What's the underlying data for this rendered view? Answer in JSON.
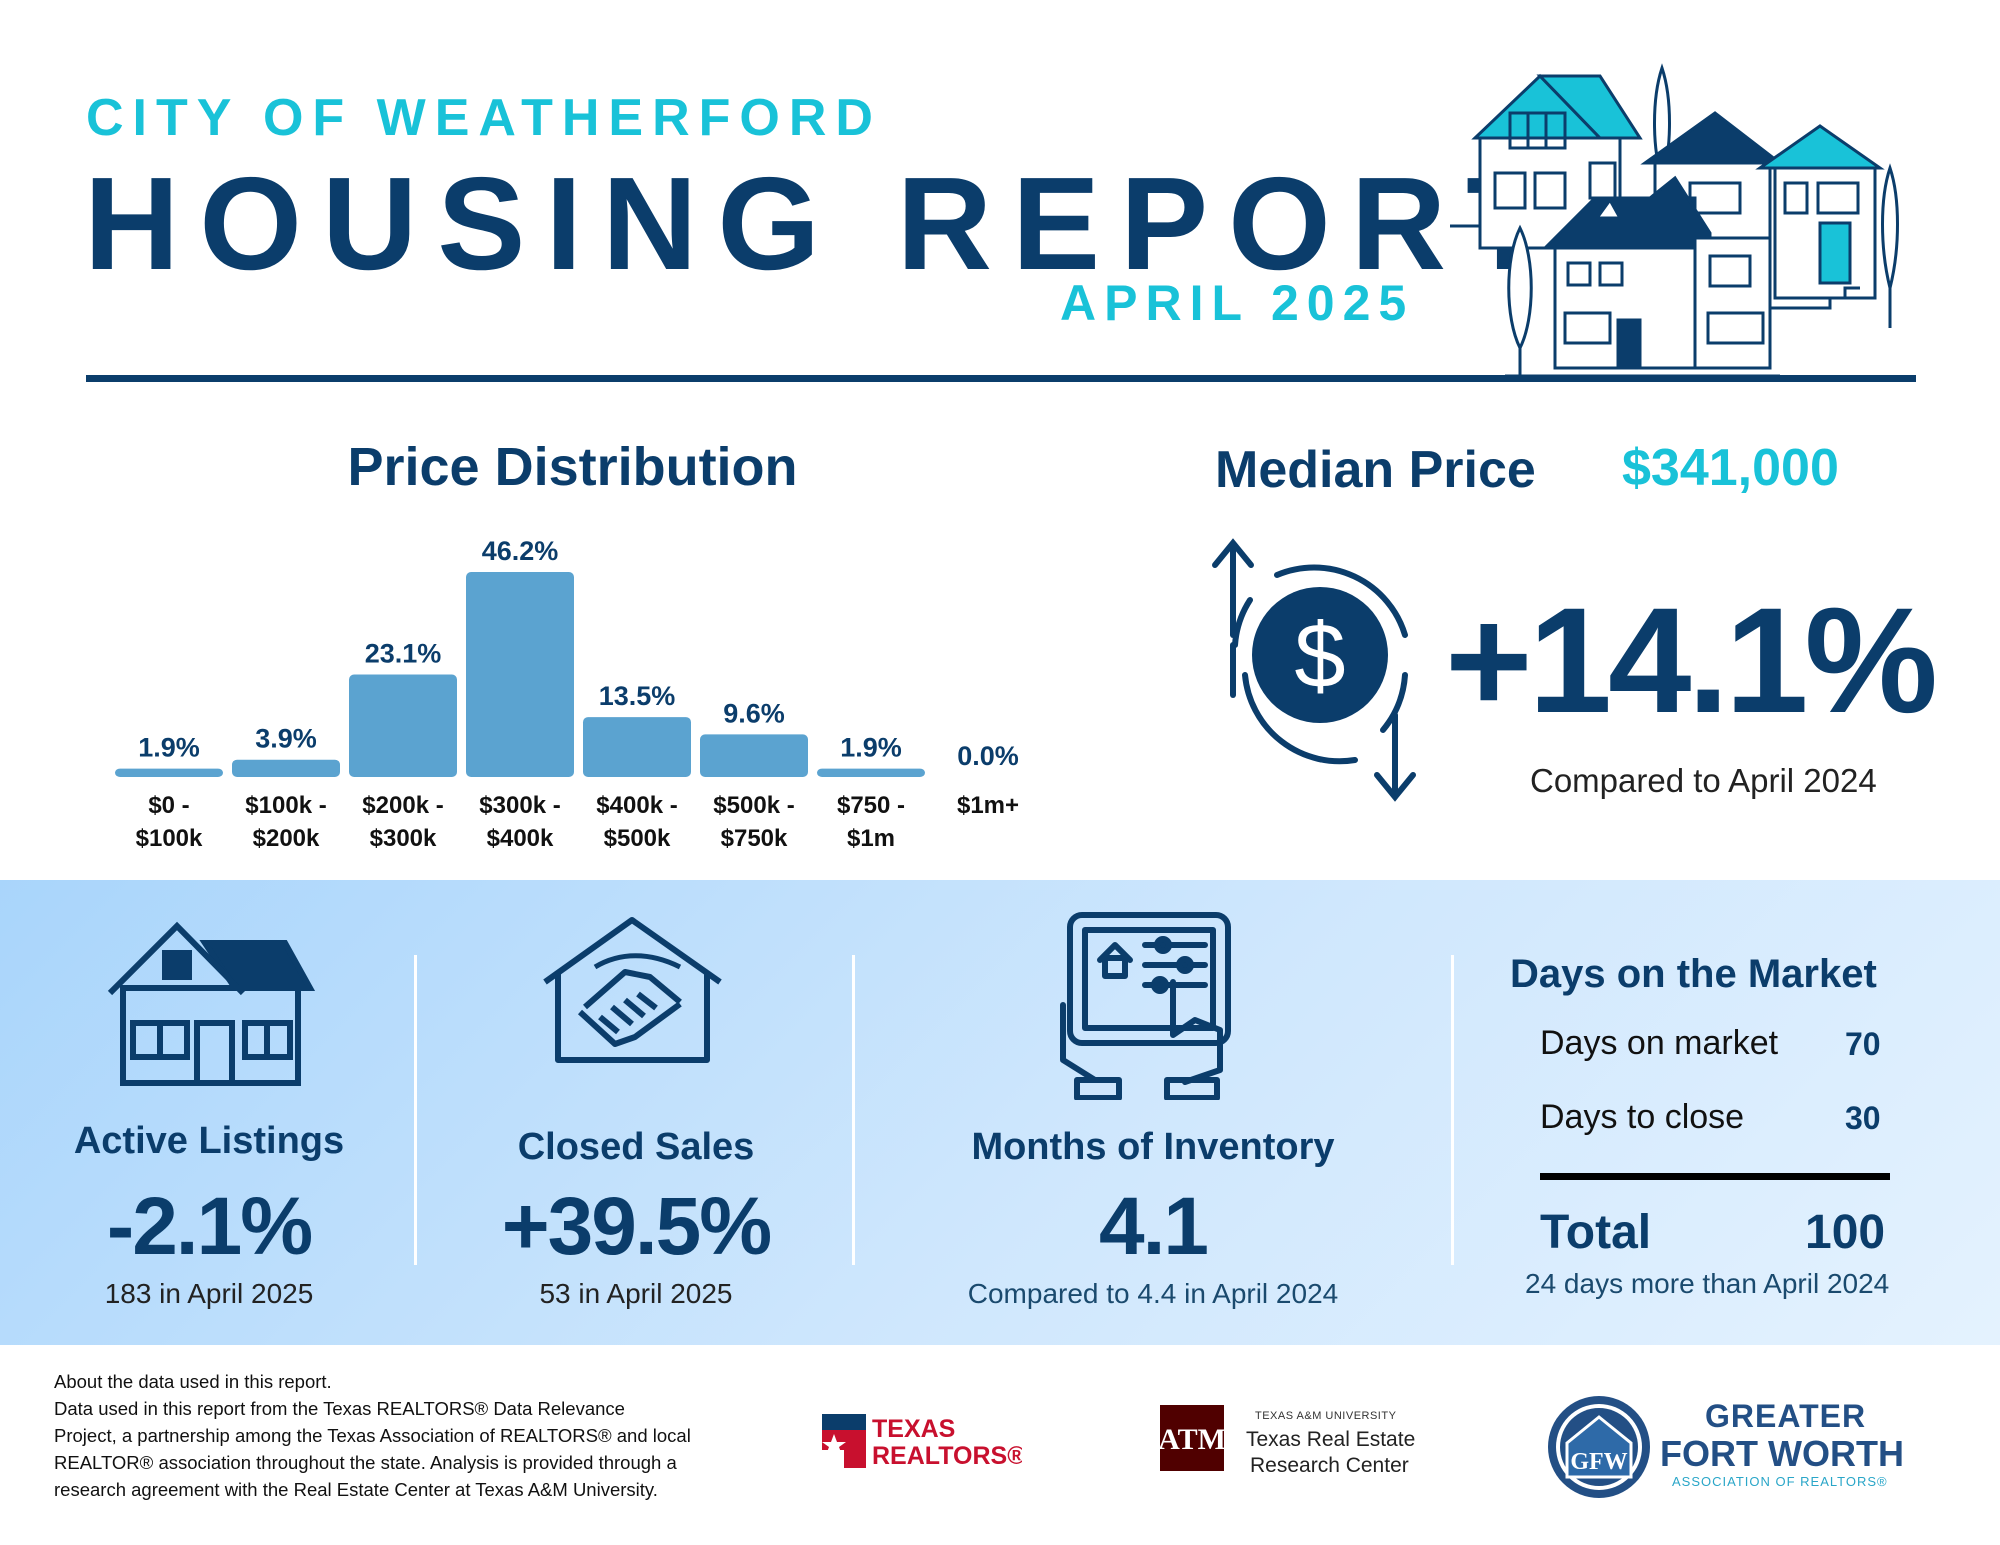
{
  "header": {
    "city": "CITY OF WEATHERFORD",
    "title": "HOUSING REPORT",
    "month": "APRIL 2025"
  },
  "price_distribution": {
    "title": "Price Distribution"
  },
  "chart_data": {
    "type": "bar",
    "title": "Price Distribution",
    "categories": [
      [
        "$0 -",
        "$100k"
      ],
      [
        "$100k -",
        "$200k"
      ],
      [
        "$200k -",
        "$300k"
      ],
      [
        "$300k -",
        "$400k"
      ],
      [
        "$400k -",
        "$500k"
      ],
      [
        "$500k -",
        "$750k"
      ],
      [
        "$750 -",
        "$1m"
      ],
      [
        "$1m+"
      ]
    ],
    "values": [
      1.9,
      3.9,
      23.1,
      46.2,
      13.5,
      9.6,
      1.9,
      0.0
    ],
    "labels": [
      "1.9%",
      "3.9%",
      "23.1%",
      "46.2%",
      "13.5%",
      "9.6%",
      "1.9%",
      "0.0%"
    ],
    "ylim": [
      0,
      46.2
    ],
    "grid": false,
    "legend": "none",
    "bar_color": "#5ba3d0"
  },
  "median": {
    "label": "Median Price",
    "value": "$341,000",
    "change": "+14.1%",
    "note": "Compared to April 2024"
  },
  "stats": {
    "active": {
      "title": "Active Listings",
      "value": "-2.1%",
      "sub": "183 in April 2025"
    },
    "closed": {
      "title": "Closed Sales",
      "value": "+39.5%",
      "sub": "53 in April 2025"
    },
    "inventory": {
      "title": "Months of Inventory",
      "value": "4.1",
      "sub": "Compared to 4.4 in April 2024"
    }
  },
  "dom": {
    "title": "Days on the Market",
    "rows": [
      {
        "label": "Days on market",
        "value": "70"
      },
      {
        "label": "Days to close",
        "value": "30"
      }
    ],
    "total_label": "Total",
    "total_value": "100",
    "note": "24 days more than April 2024"
  },
  "footer": {
    "lines": [
      "About the data used in this report.",
      "Data used in this report from the Texas REALTORS® Data Relevance",
      "Project, a partnership among the Texas Association of REALTORS® and local",
      "REALTOR® association throughout the state. Analysis is provided through a",
      "research agreement with the Real Estate Center at Texas A&M University."
    ],
    "logos": {
      "texas_realtors": [
        "TEXAS",
        "REALTORS®"
      ],
      "tamu_top": "TEXAS A&M UNIVERSITY",
      "tamu_l1": "Texas Real Estate",
      "tamu_l2": "Research Center",
      "gfw_l1": "GREATER",
      "gfw_l2": "FORT WORTH",
      "gfw_l3": "ASSOCIATION OF REALTORS®"
    }
  },
  "colors": {
    "navy": "#0b3d6b",
    "cyan": "#19c2d8",
    "bar": "#5ba3d0",
    "band_light": "#cfe7fd"
  }
}
